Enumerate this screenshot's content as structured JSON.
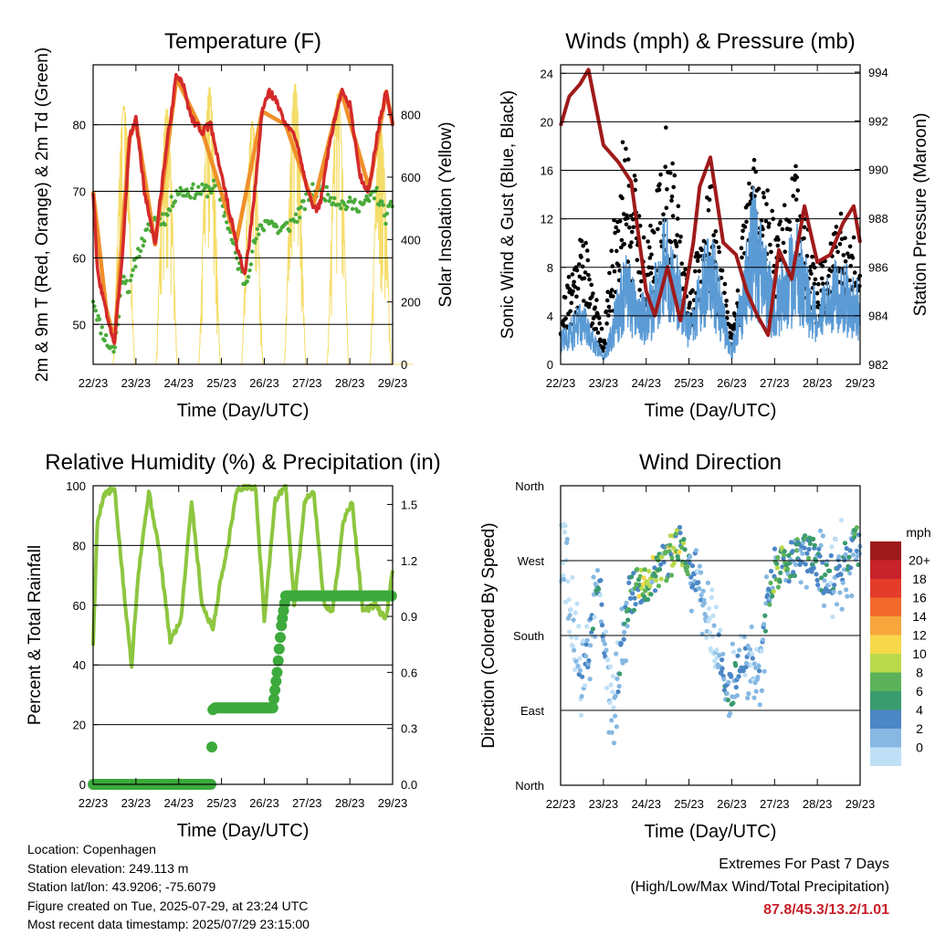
{
  "charts": {
    "temperature": {
      "title": "Temperature (F)",
      "xlabel": "Time (Day/UTC)",
      "ylabel_left": "2m & 9m T (Red, Orange) & 2m Td (Green)",
      "ylabel_right": "Solar Insolation (Yellow)"
    },
    "winds": {
      "title": "Winds (mph) & Pressure (mb)",
      "xlabel": "Time (Day/UTC)",
      "ylabel_left": "Sonic Wind & Gust (Blue, Black)",
      "ylabel_right": "Station Pressure (Maroon)"
    },
    "humidity": {
      "title": "Relative Humidity (%) & Precipitation (in)",
      "xlabel": "Time (Day/UTC)",
      "ylabel_left": "Percent & Total Rainfall"
    },
    "direction": {
      "title": "Wind Direction",
      "xlabel": "Time (Day/UTC)",
      "ylabel_left": "Direction (Colored By Speed)",
      "legend_title": "mph"
    }
  },
  "info": {
    "location": "Location: Copenhagen",
    "elevation": "Station elevation: 249.113 m",
    "latlon": "Station lat/lon: 43.9206; -75.6079",
    "created": "Figure created on Tue, 2025-07-29, at 23:24 UTC",
    "recent": "Most recent data timestamp: 2025/07/29 23:15:00"
  },
  "extremes": {
    "line1": "Extremes For Past 7 Days",
    "line2": "(High/Low/Max Wind/Total Precipitation)",
    "values": "87.8/45.3/13.2/1.01"
  },
  "colors": {
    "temp_2m": "#d42a2a",
    "temp_9m": "#f0902a",
    "dewpoint": "#4aaa3a",
    "solar": "#f5dd6a",
    "wind": "#5b9bd5",
    "gust": "#000000",
    "pressure": "#a01a1a",
    "rh": "#8dc63f",
    "precip": "#3daa3d"
  },
  "chart_data": [
    {
      "type": "line",
      "name": "temperature",
      "x_ticks": [
        "22/23",
        "23/23",
        "24/23",
        "25/23",
        "26/23",
        "27/23",
        "28/23",
        "29/23"
      ],
      "y_ticks": [
        50,
        60,
        70,
        80
      ],
      "ylim": [
        44,
        89
      ],
      "y2_ticks": [
        0,
        200,
        400,
        600,
        800
      ],
      "y2lim": [
        0,
        960
      ],
      "grid": "horizontal",
      "series": [
        {
          "name": "2m T",
          "color": "#d42a2a",
          "x": [
            0,
            0.1,
            0.3,
            0.5,
            0.7,
            0.85,
            1.0,
            1.2,
            1.45,
            1.7,
            1.95,
            2.1,
            2.3,
            2.55,
            2.75,
            2.95,
            3.15,
            3.35,
            3.55,
            3.75,
            3.95,
            4.1,
            4.25,
            4.5,
            4.75,
            4.95,
            5.15,
            5.3,
            5.55,
            5.8,
            6.0,
            6.25,
            6.45,
            6.65,
            6.85,
            7.0
          ],
          "y": [
            70,
            58,
            52,
            47,
            62,
            78,
            81,
            70,
            62,
            76,
            87.5,
            86,
            81,
            79,
            80,
            74,
            68,
            62,
            57,
            68,
            82,
            85,
            84,
            80,
            78,
            72,
            67,
            68,
            78,
            85,
            83,
            72,
            70,
            79,
            85,
            80
          ]
        },
        {
          "name": "9m T",
          "color": "#f0902a",
          "x": [
            0,
            0.3,
            0.5,
            0.85,
            1.0,
            1.45,
            1.95,
            2.55,
            3.35,
            3.95,
            4.5,
            5.15,
            5.8,
            6.45,
            6.85,
            7.0
          ],
          "y": [
            70,
            52.5,
            47.5,
            78,
            80.5,
            62,
            87,
            79,
            62.5,
            82,
            80,
            68,
            85,
            70.5,
            85,
            80
          ]
        },
        {
          "name": "2m Td",
          "color": "#4aaa3a",
          "x": [
            0,
            0.15,
            0.35,
            0.5,
            0.7,
            0.85,
            1.0,
            1.2,
            1.45,
            1.7,
            1.95,
            2.3,
            2.6,
            2.9,
            3.15,
            3.35,
            3.55,
            3.8,
            4.1,
            4.35,
            4.6,
            4.85,
            5.1,
            5.35,
            5.6,
            5.85,
            6.1,
            6.35,
            6.6,
            6.85,
            7.0
          ],
          "y": [
            54,
            50,
            47,
            46,
            58,
            55,
            60,
            63,
            66,
            66,
            70,
            70,
            70,
            71,
            65,
            60,
            56,
            63,
            66,
            64,
            65,
            67,
            70,
            70,
            69,
            68,
            68,
            68,
            70,
            66,
            68
          ]
        }
      ],
      "solar_insolation": {
        "name": "Solar Insolation",
        "color": "#f5dd6a",
        "daily_peak": [
          830,
          820,
          890,
          780,
          900,
          870,
          760,
          880
        ]
      }
    },
    {
      "type": "scatter",
      "name": "winds",
      "x_ticks": [
        "22/23",
        "23/23",
        "24/23",
        "25/23",
        "26/23",
        "27/23",
        "28/23",
        "29/23"
      ],
      "y_ticks": [
        0,
        4,
        8,
        12,
        16,
        20,
        24
      ],
      "ylim": [
        0,
        24.7
      ],
      "y2_ticks": [
        982,
        984,
        986,
        988,
        990,
        992,
        994
      ],
      "y2lim": [
        982,
        994.3
      ],
      "grid": "horizontal",
      "series": [
        {
          "name": "Sonic Wind",
          "color": "#5b9bd5",
          "x": [
            0,
            0.5,
            1.0,
            1.5,
            2.0,
            2.5,
            3.0,
            3.5,
            4.0,
            4.5,
            5.0,
            5.5,
            6.0,
            6.5,
            7.0
          ],
          "y": [
            2,
            4,
            0.5,
            7,
            4,
            10,
            3,
            9,
            1,
            11,
            5,
            9,
            4,
            7,
            5
          ]
        },
        {
          "name": "Gust",
          "color": "#000000",
          "x": [
            0,
            0.5,
            1.0,
            1.5,
            2.0,
            2.5,
            3.0,
            3.5,
            4.0,
            4.5,
            5.0,
            5.5,
            6.0,
            6.5,
            7.0
          ],
          "y": [
            4,
            10,
            2,
            18,
            8,
            17,
            5,
            13,
            2,
            16,
            10,
            14,
            7,
            11,
            8
          ]
        },
        {
          "name": "Station Pressure",
          "color": "#a01a1a",
          "x": [
            0,
            0.2,
            0.45,
            0.65,
            1.0,
            1.35,
            1.65,
            2.0,
            2.2,
            2.5,
            2.8,
            3.1,
            3.25,
            3.5,
            3.8,
            4.1,
            4.35,
            4.6,
            4.85,
            5.1,
            5.4,
            5.7,
            6.0,
            6.3,
            6.6,
            6.85,
            7.0
          ],
          "y": [
            991.8,
            993.0,
            993.5,
            994.1,
            991.0,
            990.3,
            989.5,
            985.0,
            984.0,
            986.0,
            983.8,
            987.0,
            989.3,
            990.5,
            987.0,
            986.5,
            985.0,
            984.0,
            983.2,
            986.7,
            985.5,
            988.5,
            986.2,
            986.5,
            987.8,
            988.5,
            987.0
          ]
        }
      ]
    },
    {
      "type": "line",
      "name": "humidity_precip",
      "x_ticks": [
        "22/23",
        "23/23",
        "24/23",
        "25/23",
        "26/23",
        "27/23",
        "28/23",
        "29/23"
      ],
      "y_ticks": [
        0,
        20,
        40,
        60,
        80,
        100
      ],
      "ylim": [
        0,
        100
      ],
      "y2_ticks": [
        "0.0",
        "0.3",
        "0.6",
        "0.9",
        "1.2",
        "1.5"
      ],
      "y2lim": [
        0,
        1.6
      ],
      "grid": "horizontal",
      "series": [
        {
          "name": "Relative Humidity",
          "color": "#8dc63f",
          "x": [
            0,
            0.1,
            0.25,
            0.5,
            0.75,
            0.9,
            1.05,
            1.3,
            1.55,
            1.8,
            2.05,
            2.3,
            2.55,
            2.8,
            3.0,
            3.15,
            3.35,
            3.55,
            3.8,
            4.0,
            4.25,
            4.5,
            4.7,
            4.95,
            5.15,
            5.4,
            5.6,
            5.85,
            6.05,
            6.3,
            6.6,
            6.85,
            7.0
          ],
          "y": [
            47,
            88,
            97,
            99,
            60,
            40,
            70,
            98,
            78,
            48,
            55,
            95,
            60,
            52,
            70,
            80,
            98,
            100,
            99,
            55,
            95,
            100,
            60,
            95,
            99,
            60,
            58,
            88,
            95,
            58,
            60,
            55,
            72
          ]
        },
        {
          "name": "Total Rainfall",
          "color": "#3daa3d",
          "x": [
            0,
            2.75,
            2.8,
            2.85,
            4.2,
            4.3,
            4.4,
            4.5,
            7.0
          ],
          "y": [
            0,
            0,
            0.4,
            0.41,
            0.41,
            0.6,
            0.85,
            1.01,
            1.01
          ]
        }
      ]
    },
    {
      "type": "scatter",
      "name": "wind_direction",
      "x_ticks": [
        "22/23",
        "23/23",
        "24/23",
        "25/23",
        "26/23",
        "27/23",
        "28/23",
        "29/23"
      ],
      "y_ticks": [
        "North",
        "East",
        "South",
        "West",
        "North"
      ],
      "ylim": [
        0,
        360
      ],
      "grid": "horizontal",
      "color_scale": {
        "title": "mph",
        "labels": [
          "20+",
          "18",
          "16",
          "14",
          "12",
          "10",
          "8",
          "6",
          "4",
          "2",
          "0"
        ],
        "colors": [
          "#9e1b1b",
          "#c8232a",
          "#e33c2b",
          "#f26a2c",
          "#f7a63c",
          "#f6d84a",
          "#b9d94b",
          "#5cb25a",
          "#3a9b6e",
          "#4b86c5",
          "#86b8e2",
          "#bfe0f6"
        ]
      },
      "x": [
        0.1,
        0.5,
        0.9,
        1.2,
        1.6,
        2.0,
        2.4,
        2.8,
        3.2,
        3.6,
        3.9,
        4.3,
        4.6,
        5.0,
        5.4,
        5.8,
        6.2,
        6.6,
        6.9
      ],
      "y": [
        270,
        120,
        250,
        70,
        230,
        240,
        265,
        290,
        250,
        180,
        110,
        150,
        130,
        260,
        270,
        280,
        250,
        265,
        290
      ],
      "speed": [
        2,
        4,
        6,
        2,
        10,
        11,
        10,
        11,
        4,
        2,
        7,
        5,
        3,
        10,
        8,
        7,
        6,
        6,
        7
      ]
    }
  ]
}
